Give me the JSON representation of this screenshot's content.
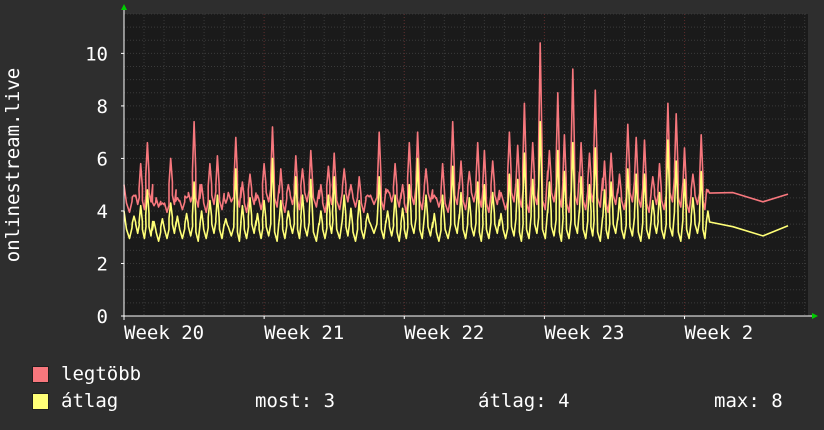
{
  "chart_data": {
    "type": "line",
    "ylabel": "onlinestream.live",
    "ylim": [
      0,
      11.5
    ],
    "yticks": [
      0,
      2,
      4,
      6,
      8,
      10
    ],
    "x_ticks": [
      "Week 20",
      "Week 21",
      "Week 22",
      "Week 23",
      "Week 2"
    ],
    "x_unit": "hours",
    "x_range": [
      0,
      820
    ],
    "tick_hours": [
      0,
      168,
      336,
      504,
      672
    ],
    "grid": true,
    "series": [
      {
        "name": "legtöbb",
        "color": "#f7777d",
        "hourly_peaks": [
          [
            0,
            5.0
          ],
          [
            12,
            4.6
          ],
          [
            20,
            5.8
          ],
          [
            28,
            6.6
          ],
          [
            36,
            4.2
          ],
          [
            46,
            4.3
          ],
          [
            56,
            6.0
          ],
          [
            64,
            4.5
          ],
          [
            75,
            4.5
          ],
          [
            84,
            7.4
          ],
          [
            93,
            5.0
          ],
          [
            103,
            5.8
          ],
          [
            112,
            6.1
          ],
          [
            122,
            4.3
          ],
          [
            134,
            6.8
          ],
          [
            142,
            5.1
          ],
          [
            151,
            5.4
          ],
          [
            160,
            4.6
          ],
          [
            168,
            5.8
          ],
          [
            178,
            7.2
          ],
          [
            188,
            5.6
          ],
          [
            197,
            5.0
          ],
          [
            206,
            6.1
          ],
          [
            214,
            5.6
          ],
          [
            224,
            6.3
          ],
          [
            236,
            5.0
          ],
          [
            245,
            5.7
          ],
          [
            252,
            6.2
          ],
          [
            264,
            5.6
          ],
          [
            272,
            5.0
          ],
          [
            282,
            5.3
          ],
          [
            292,
            4.6
          ],
          [
            306,
            7.0
          ],
          [
            316,
            4.8
          ],
          [
            325,
            5.8
          ],
          [
            334,
            5.0
          ],
          [
            342,
            6.6
          ],
          [
            352,
            7.0
          ],
          [
            362,
            5.6
          ],
          [
            372,
            4.6
          ],
          [
            382,
            5.8
          ],
          [
            394,
            7.4
          ],
          [
            404,
            5.9
          ],
          [
            414,
            5.5
          ],
          [
            424,
            6.6
          ],
          [
            432,
            6.3
          ],
          [
            442,
            5.9
          ],
          [
            452,
            4.7
          ],
          [
            462,
            7.0
          ],
          [
            472,
            6.5
          ],
          [
            480,
            8.1
          ],
          [
            490,
            6.6
          ],
          [
            499,
            10.4
          ],
          [
            510,
            6.3
          ],
          [
            520,
            8.5
          ],
          [
            528,
            6.9
          ],
          [
            538,
            9.4
          ],
          [
            548,
            6.6
          ],
          [
            558,
            6.2
          ],
          [
            565,
            8.6
          ],
          [
            576,
            5.9
          ],
          [
            584,
            6.2
          ],
          [
            594,
            5.4
          ],
          [
            604,
            7.3
          ],
          [
            614,
            6.8
          ],
          [
            624,
            6.7
          ],
          [
            634,
            5.3
          ],
          [
            642,
            5.8
          ],
          [
            652,
            8.1
          ],
          [
            662,
            7.7
          ],
          [
            672,
            6.4
          ],
          [
            682,
            5.4
          ],
          [
            692,
            6.9
          ],
          [
            700,
            4.8
          ]
        ],
        "base": [
          4.2,
          4.5,
          4.3,
          4.6,
          4.4
        ]
      },
      {
        "name": "átlag",
        "color": "#ffff77",
        "hourly_peaks": [
          [
            0,
            4.0
          ],
          [
            12,
            3.8
          ],
          [
            20,
            4.2
          ],
          [
            28,
            4.8
          ],
          [
            36,
            3.6
          ],
          [
            46,
            3.7
          ],
          [
            56,
            4.3
          ],
          [
            64,
            3.8
          ],
          [
            75,
            3.9
          ],
          [
            84,
            5.1
          ],
          [
            93,
            4.0
          ],
          [
            103,
            4.4
          ],
          [
            112,
            4.6
          ],
          [
            122,
            3.7
          ],
          [
            134,
            5.6
          ],
          [
            142,
            4.2
          ],
          [
            151,
            4.5
          ],
          [
            160,
            3.9
          ],
          [
            168,
            4.4
          ],
          [
            178,
            6.0
          ],
          [
            188,
            4.4
          ],
          [
            197,
            4.0
          ],
          [
            206,
            5.3
          ],
          [
            214,
            4.6
          ],
          [
            224,
            5.2
          ],
          [
            236,
            4.0
          ],
          [
            245,
            4.6
          ],
          [
            252,
            5.3
          ],
          [
            264,
            4.6
          ],
          [
            272,
            4.1
          ],
          [
            282,
            4.4
          ],
          [
            292,
            3.9
          ],
          [
            306,
            5.3
          ],
          [
            316,
            4.0
          ],
          [
            325,
            4.6
          ],
          [
            334,
            4.1
          ],
          [
            342,
            5.0
          ],
          [
            352,
            6.0
          ],
          [
            362,
            4.6
          ],
          [
            372,
            3.9
          ],
          [
            382,
            4.6
          ],
          [
            394,
            5.7
          ],
          [
            404,
            4.7
          ],
          [
            414,
            4.5
          ],
          [
            424,
            5.1
          ],
          [
            432,
            5.0
          ],
          [
            442,
            4.7
          ],
          [
            452,
            3.9
          ],
          [
            462,
            5.4
          ],
          [
            472,
            5.2
          ],
          [
            480,
            6.2
          ],
          [
            490,
            5.2
          ],
          [
            499,
            7.4
          ],
          [
            510,
            5.1
          ],
          [
            520,
            6.3
          ],
          [
            528,
            5.5
          ],
          [
            538,
            6.6
          ],
          [
            548,
            5.3
          ],
          [
            558,
            5.0
          ],
          [
            565,
            6.4
          ],
          [
            576,
            4.8
          ],
          [
            584,
            5.1
          ],
          [
            594,
            4.5
          ],
          [
            604,
            5.6
          ],
          [
            614,
            5.4
          ],
          [
            624,
            5.4
          ],
          [
            634,
            4.4
          ],
          [
            642,
            4.7
          ],
          [
            652,
            6.7
          ],
          [
            662,
            5.9
          ],
          [
            672,
            5.2
          ],
          [
            682,
            4.5
          ],
          [
            692,
            5.5
          ],
          [
            700,
            4.0
          ]
        ],
        "base": [
          3.2,
          3.4,
          3.2,
          3.3,
          3.1
        ]
      }
    ]
  },
  "legend": {
    "series1_label": "legtöbb",
    "series2_label": "átlag",
    "series1_color": "#f7777d",
    "series2_color": "#ffff77"
  },
  "stats": {
    "most_label": "most:",
    "most_value": "3",
    "avg_label": "átlag:",
    "avg_value": "4",
    "max_label": "max:",
    "max_value": "8"
  },
  "colors": {
    "background": "#2e2e2e",
    "plot_background": "#1a1a1a",
    "minor_grid": "#3a3a3a",
    "major_grid": "#5a2a2a",
    "axis": "#ffffff",
    "arrow": "#00cc00"
  }
}
